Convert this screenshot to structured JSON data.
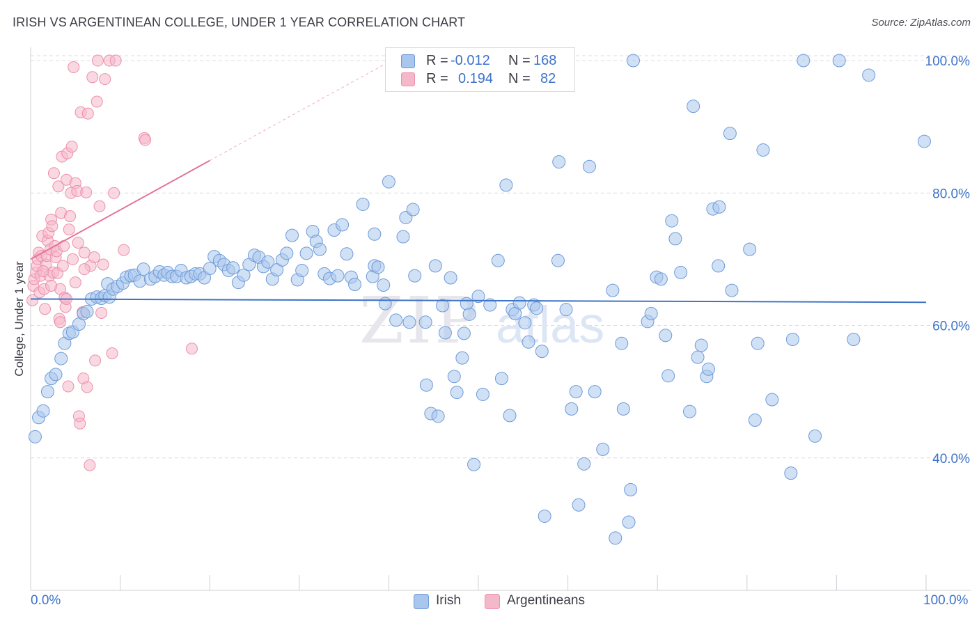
{
  "header": {
    "title": "IRISH VS ARGENTINEAN COLLEGE, UNDER 1 YEAR CORRELATION CHART",
    "source": "Source: ZipAtlas.com"
  },
  "legend": {
    "irish": {
      "r_label": "R =",
      "r_value": "-0.012",
      "n_label": "N =",
      "n_value": "168"
    },
    "argentineans": {
      "r_label": "R =",
      "r_value": "0.194",
      "n_label": "N =",
      "n_value": "82"
    }
  },
  "bottom_legend": {
    "irish": "Irish",
    "argentineans": "Argentineans"
  },
  "colors": {
    "irish_fill": "#a9c6ec",
    "irish_stroke": "#6d9ad8",
    "irish_line": "#3d73c8",
    "arg_fill": "#f5b8cb",
    "arg_stroke": "#ec8fab",
    "arg_line": "#e5739a",
    "axis_text": "#3d73c8",
    "grid": "#dcdce4"
  },
  "watermark": {
    "zip": "ZIP",
    "atlas": "atlas"
  },
  "chart_data": {
    "type": "scatter",
    "title": "IRISH VS ARGENTINEAN COLLEGE, UNDER 1 YEAR CORRELATION CHART",
    "xlabel": "",
    "ylabel": "College, Under 1 year",
    "xlim": [
      0,
      100
    ],
    "ylim": [
      20,
      102
    ],
    "x_tick_labels": [
      "0.0%",
      "100.0%"
    ],
    "y_ticks": [
      40,
      60,
      80,
      100
    ],
    "y_tick_labels": [
      "40.0%",
      "60.0%",
      "80.0%",
      "100.0%"
    ],
    "grid": true,
    "legend_position": "top-center",
    "series": [
      {
        "name": "Irish",
        "R": -0.012,
        "N": 168,
        "trend": {
          "x": [
            0,
            100
          ],
          "y": [
            64.0,
            63.5
          ]
        },
        "points": [
          [
            0.5,
            43.2
          ],
          [
            0.9,
            46.1
          ],
          [
            1.4,
            47.1
          ],
          [
            1.9,
            50.0
          ],
          [
            2.3,
            52.0
          ],
          [
            2.8,
            52.6
          ],
          [
            3.4,
            55.0
          ],
          [
            3.8,
            57.3
          ],
          [
            4.3,
            58.8
          ],
          [
            4.7,
            59.0
          ],
          [
            5.4,
            60.2
          ],
          [
            5.9,
            61.8
          ],
          [
            6.3,
            62.1
          ],
          [
            6.8,
            64.0
          ],
          [
            7.4,
            64.3
          ],
          [
            7.9,
            64.1
          ],
          [
            8.3,
            64.5
          ],
          [
            8.8,
            64.3
          ],
          [
            8.6,
            66.3
          ],
          [
            9.2,
            65.5
          ],
          [
            9.7,
            65.9
          ],
          [
            10.3,
            66.4
          ],
          [
            10.7,
            67.3
          ],
          [
            11.2,
            67.5
          ],
          [
            11.6,
            67.6
          ],
          [
            12.2,
            66.7
          ],
          [
            12.6,
            68.5
          ],
          [
            13.4,
            67.0
          ],
          [
            13.9,
            67.4
          ],
          [
            14.4,
            68.1
          ],
          [
            14.9,
            67.6
          ],
          [
            15.3,
            68.0
          ],
          [
            15.8,
            67.4
          ],
          [
            16.3,
            67.4
          ],
          [
            16.8,
            68.3
          ],
          [
            17.4,
            67.2
          ],
          [
            17.9,
            67.4
          ],
          [
            18.4,
            67.8
          ],
          [
            18.9,
            67.8
          ],
          [
            19.4,
            67.2
          ],
          [
            20.0,
            68.6
          ],
          [
            20.5,
            70.4
          ],
          [
            21.1,
            69.8
          ],
          [
            21.6,
            69.2
          ],
          [
            22.1,
            68.3
          ],
          [
            22.6,
            68.7
          ],
          [
            23.2,
            66.5
          ],
          [
            23.8,
            67.6
          ],
          [
            24.4,
            69.2
          ],
          [
            25.0,
            70.6
          ],
          [
            25.5,
            70.3
          ],
          [
            26.0,
            68.9
          ],
          [
            26.5,
            69.6
          ],
          [
            27.0,
            67.0
          ],
          [
            27.5,
            68.4
          ],
          [
            28.1,
            69.9
          ],
          [
            28.6,
            70.9
          ],
          [
            29.2,
            73.6
          ],
          [
            29.8,
            66.9
          ],
          [
            30.3,
            68.3
          ],
          [
            30.8,
            70.9
          ],
          [
            31.5,
            74.2
          ],
          [
            31.9,
            72.7
          ],
          [
            32.3,
            71.5
          ],
          [
            32.8,
            67.8
          ],
          [
            33.4,
            67.1
          ],
          [
            33.9,
            74.4
          ],
          [
            34.3,
            67.5
          ],
          [
            34.8,
            75.2
          ],
          [
            35.3,
            70.8
          ],
          [
            35.8,
            67.3
          ],
          [
            36.2,
            66.2
          ],
          [
            37.1,
            78.3
          ],
          [
            38.2,
            67.4
          ],
          [
            38.4,
            69.0
          ],
          [
            38.4,
            73.8
          ],
          [
            38.8,
            68.8
          ],
          [
            39.4,
            66.1
          ],
          [
            39.6,
            63.3
          ],
          [
            40.0,
            81.7
          ],
          [
            40.8,
            60.8
          ],
          [
            41.6,
            73.4
          ],
          [
            41.9,
            76.3
          ],
          [
            42.3,
            60.5
          ],
          [
            42.7,
            77.5
          ],
          [
            42.9,
            67.5
          ],
          [
            44.1,
            60.5
          ],
          [
            44.2,
            51.0
          ],
          [
            44.7,
            46.7
          ],
          [
            45.2,
            69.0
          ],
          [
            45.5,
            46.3
          ],
          [
            46.0,
            63.0
          ],
          [
            46.3,
            58.9
          ],
          [
            46.9,
            67.2
          ],
          [
            47.3,
            52.3
          ],
          [
            47.6,
            49.9
          ],
          [
            48.2,
            55.1
          ],
          [
            48.4,
            58.8
          ],
          [
            48.7,
            63.3
          ],
          [
            49.0,
            61.7
          ],
          [
            49.5,
            39.0
          ],
          [
            50.0,
            64.4
          ],
          [
            50.5,
            49.6
          ],
          [
            51.3,
            63.1
          ],
          [
            52.2,
            69.8
          ],
          [
            52.6,
            52.0
          ],
          [
            53.1,
            81.2
          ],
          [
            53.5,
            46.4
          ],
          [
            53.8,
            62.4
          ],
          [
            54.1,
            61.8
          ],
          [
            54.6,
            63.4
          ],
          [
            55.2,
            60.4
          ],
          [
            55.6,
            57.5
          ],
          [
            56.2,
            63.1
          ],
          [
            56.5,
            62.6
          ],
          [
            57.1,
            56.1
          ],
          [
            57.4,
            31.2
          ],
          [
            59.0,
            84.7
          ],
          [
            58.9,
            69.8
          ],
          [
            59.8,
            62.4
          ],
          [
            60.4,
            47.4
          ],
          [
            60.9,
            50.0
          ],
          [
            61.2,
            32.9
          ],
          [
            61.8,
            39.1
          ],
          [
            62.4,
            84.0
          ],
          [
            63.0,
            50.0
          ],
          [
            63.9,
            41.3
          ],
          [
            65.0,
            65.3
          ],
          [
            65.3,
            27.9
          ],
          [
            66.0,
            57.3
          ],
          [
            66.2,
            47.4
          ],
          [
            66.8,
            30.3
          ],
          [
            67.0,
            35.2
          ],
          [
            67.3,
            100.0
          ],
          [
            68.9,
            60.6
          ],
          [
            69.3,
            61.8
          ],
          [
            69.9,
            67.3
          ],
          [
            70.4,
            67.0
          ],
          [
            70.9,
            58.5
          ],
          [
            71.2,
            52.4
          ],
          [
            71.6,
            75.8
          ],
          [
            72.0,
            73.1
          ],
          [
            72.6,
            68.0
          ],
          [
            73.6,
            47.0
          ],
          [
            74.0,
            93.1
          ],
          [
            74.5,
            55.2
          ],
          [
            74.9,
            57.0
          ],
          [
            75.5,
            52.3
          ],
          [
            75.7,
            53.4
          ],
          [
            76.2,
            77.6
          ],
          [
            76.9,
            77.9
          ],
          [
            76.8,
            69.0
          ],
          [
            78.1,
            89.0
          ],
          [
            78.3,
            65.3
          ],
          [
            80.3,
            71.5
          ],
          [
            80.9,
            45.7
          ],
          [
            81.2,
            57.3
          ],
          [
            81.8,
            86.5
          ],
          [
            82.8,
            48.8
          ],
          [
            84.9,
            37.7
          ],
          [
            85.1,
            57.9
          ],
          [
            86.3,
            100.0
          ],
          [
            87.6,
            43.3
          ],
          [
            90.3,
            100.0
          ],
          [
            91.9,
            57.9
          ],
          [
            93.6,
            97.8
          ],
          [
            99.8,
            87.8
          ]
        ]
      },
      {
        "name": "Argentineans",
        "R": 0.194,
        "N": 82,
        "trend": {
          "x": [
            0,
            20
          ],
          "y": [
            70.0,
            84.9
          ]
        },
        "points": [
          [
            0.2,
            63.8
          ],
          [
            0.3,
            66.0
          ],
          [
            0.4,
            67.0
          ],
          [
            0.6,
            68.0
          ],
          [
            0.7,
            69.0
          ],
          [
            0.8,
            70.0
          ],
          [
            0.9,
            71.0
          ],
          [
            1.0,
            65.0
          ],
          [
            1.1,
            67.5
          ],
          [
            1.2,
            70.5
          ],
          [
            1.3,
            73.5
          ],
          [
            1.5,
            65.5
          ],
          [
            1.6,
            62.5
          ],
          [
            1.7,
            69.2
          ],
          [
            1.8,
            70.5
          ],
          [
            1.9,
            72.8
          ],
          [
            2.0,
            74.0
          ],
          [
            2.1,
            67.5
          ],
          [
            2.2,
            71.5
          ],
          [
            2.3,
            76.0
          ],
          [
            2.4,
            75.0
          ],
          [
            2.5,
            68.0
          ],
          [
            2.6,
            83.0
          ],
          [
            2.7,
            72.0
          ],
          [
            2.8,
            70.3
          ],
          [
            2.9,
            71.2
          ],
          [
            3.0,
            67.9
          ],
          [
            3.1,
            81.0
          ],
          [
            3.2,
            61.0
          ],
          [
            3.3,
            65.5
          ],
          [
            3.4,
            77.0
          ],
          [
            3.5,
            85.5
          ],
          [
            3.6,
            69.0
          ],
          [
            3.7,
            72.0
          ],
          [
            3.8,
            64.2
          ],
          [
            3.9,
            62.8
          ],
          [
            4.0,
            82.0
          ],
          [
            4.1,
            86.0
          ],
          [
            4.2,
            50.8
          ],
          [
            4.3,
            74.5
          ],
          [
            4.4,
            76.5
          ],
          [
            4.5,
            80.0
          ],
          [
            4.6,
            87.0
          ],
          [
            4.7,
            70.0
          ],
          [
            4.8,
            99.0
          ],
          [
            5.0,
            81.5
          ],
          [
            5.2,
            80.3
          ],
          [
            5.3,
            72.5
          ],
          [
            5.4,
            46.3
          ],
          [
            5.5,
            45.2
          ],
          [
            5.6,
            92.2
          ],
          [
            5.8,
            62.0
          ],
          [
            5.9,
            52.0
          ],
          [
            6.0,
            71.0
          ],
          [
            6.2,
            80.1
          ],
          [
            6.3,
            50.7
          ],
          [
            6.4,
            92.0
          ],
          [
            6.6,
            38.9
          ],
          [
            6.7,
            69.0
          ],
          [
            6.9,
            97.5
          ],
          [
            7.1,
            70.3
          ],
          [
            7.2,
            54.7
          ],
          [
            7.4,
            93.8
          ],
          [
            7.5,
            100.0
          ],
          [
            7.7,
            78.0
          ],
          [
            7.9,
            61.9
          ],
          [
            8.1,
            69.2
          ],
          [
            8.3,
            97.2
          ],
          [
            8.8,
            100.0
          ],
          [
            9.1,
            55.8
          ],
          [
            9.3,
            80.0
          ],
          [
            9.5,
            100.0
          ],
          [
            10.4,
            71.4
          ],
          [
            12.7,
            88.3
          ],
          [
            12.8,
            88.0
          ],
          [
            18.0,
            56.5
          ],
          [
            1.4,
            68.2
          ],
          [
            2.3,
            66.0
          ],
          [
            3.3,
            60.5
          ],
          [
            4.0,
            64.0
          ],
          [
            5.0,
            66.5
          ],
          [
            6.0,
            68.5
          ]
        ]
      }
    ]
  }
}
